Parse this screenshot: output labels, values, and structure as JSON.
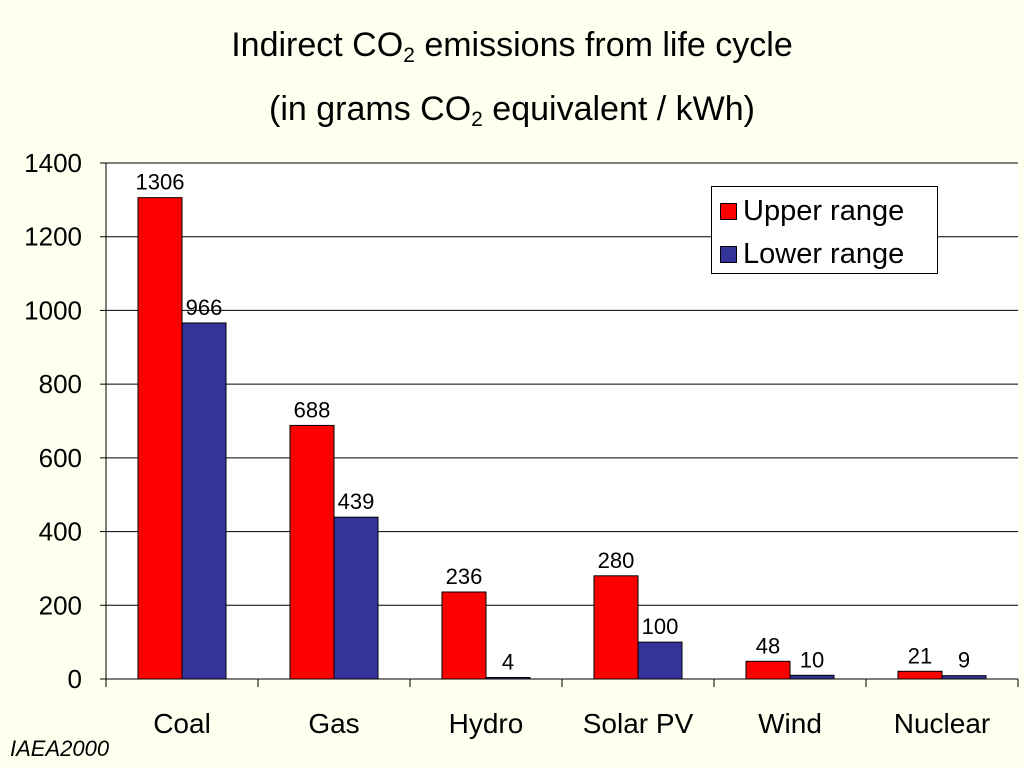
{
  "title": {
    "line1_pre": "Indirect CO",
    "line1_sub": "2",
    "line1_post": " emissions from life cycle",
    "line2_pre": "(in grams CO",
    "line2_sub": "2",
    "line2_post": " equivalent / kWh)"
  },
  "credit": "IAEA2000",
  "colors": {
    "upper": "#ff0000",
    "lower": "#333399",
    "grid": "#000000",
    "background": "#fffff0"
  },
  "chart_data": {
    "type": "bar",
    "categories": [
      "Coal",
      "Gas",
      "Hydro",
      "Solar PV",
      "Wind",
      "Nuclear"
    ],
    "series": [
      {
        "name": "Upper range",
        "values": [
          1306,
          688,
          236,
          280,
          48,
          21
        ],
        "labels": [
          "1306",
          "688",
          "236",
          "280",
          "48",
          "21"
        ]
      },
      {
        "name": "Lower range",
        "values": [
          966,
          439,
          4,
          100,
          10,
          9
        ],
        "labels": [
          "966",
          "439",
          "4",
          "100",
          "10",
          "9"
        ]
      }
    ],
    "yticks": [
      "0",
      "200",
      "400",
      "600",
      "800",
      "1000",
      "1200",
      "1400"
    ],
    "ylim": [
      0,
      1400
    ],
    "grid": true,
    "legend_position": "top-right"
  }
}
